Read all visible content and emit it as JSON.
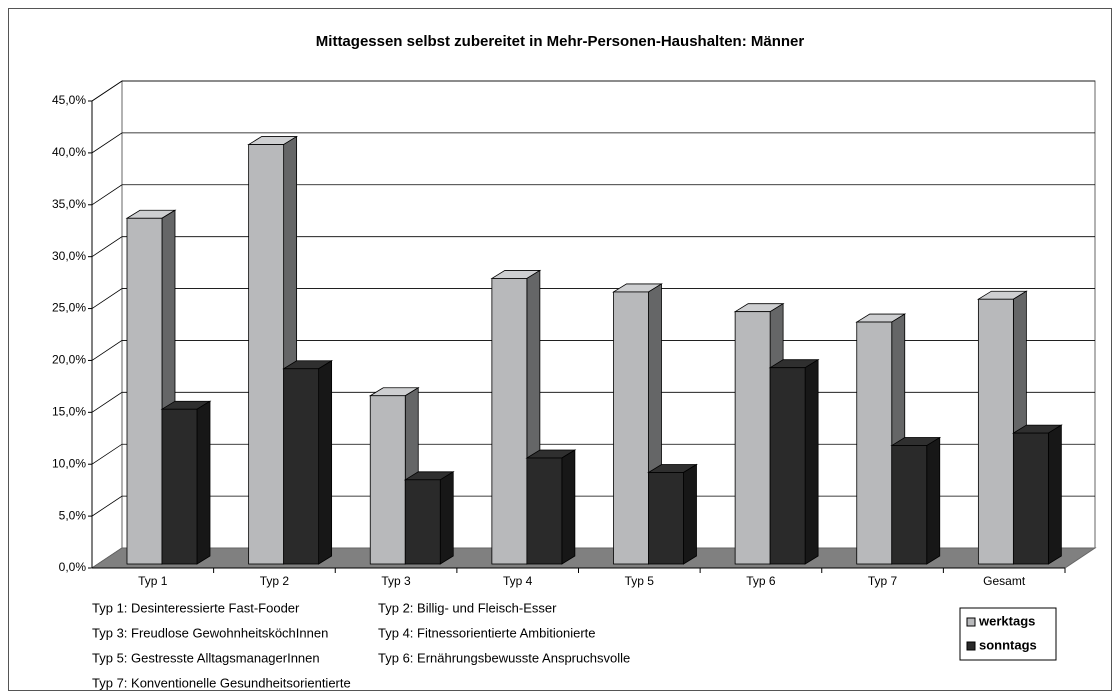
{
  "chart_data": {
    "type": "bar3d",
    "title": "Mittagessen selbst zubereitet in Mehr-Personen-Haushalten: Männer",
    "categories": [
      "Typ 1",
      "Typ 2",
      "Typ 3",
      "Typ 4",
      "Typ 5",
      "Typ 6",
      "Typ 7",
      "Gesamt"
    ],
    "series": [
      {
        "name": "werktags",
        "color": "#b8b9bb",
        "values": [
          33.7,
          40.8,
          16.6,
          27.9,
          26.6,
          24.7,
          23.7,
          25.9
        ]
      },
      {
        "name": "sonntags",
        "color": "#2a2a2a",
        "values": [
          15.3,
          19.2,
          8.5,
          10.6,
          9.2,
          19.3,
          11.8,
          13.0
        ]
      }
    ],
    "ylim": [
      0,
      45
    ],
    "yticks": [
      {
        "value": 0,
        "label": "0,0%"
      },
      {
        "value": 5,
        "label": "5,0%"
      },
      {
        "value": 10,
        "label": "10,0%"
      },
      {
        "value": 15,
        "label": "15,0%"
      },
      {
        "value": 20,
        "label": "20,0%"
      },
      {
        "value": 25,
        "label": "25,0%"
      },
      {
        "value": 30,
        "label": "30,0%"
      },
      {
        "value": 35,
        "label": "35,0%"
      },
      {
        "value": 40,
        "label": "40,0%"
      },
      {
        "value": 45,
        "label": "45,0%"
      }
    ],
    "grid": true,
    "legend": "bottom-right",
    "notes": [
      "Typ 1: Desinteressierte Fast-Fooder",
      "Typ 2: Billig- und Fleisch-Esser",
      "Typ 3: Freudlose GewohnheitsköchInnen",
      "Typ 4: Fitnessorientierte Ambitionierte",
      "Typ 5: Gestresste AlltagsmanagerInnen",
      "Typ 6: Ernährungsbewusste Anspruchsvolle",
      "Typ 7: Konventionelle Gesundheitsorientierte"
    ]
  }
}
